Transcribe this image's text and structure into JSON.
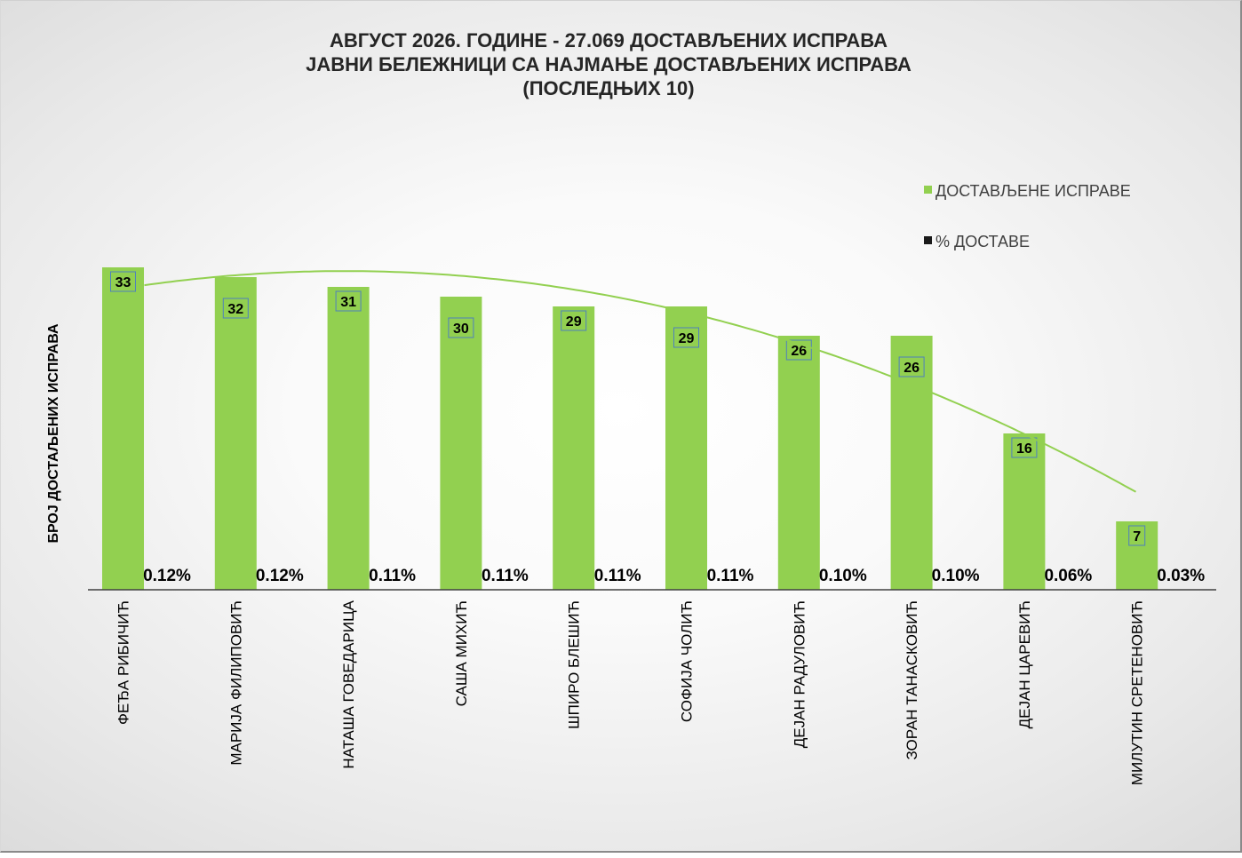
{
  "chart_data": {
    "type": "bar",
    "title_lines": [
      "АВГУСТ 2026. ГОДИНЕ - 27.069 ДОСТАВЉЕНИХ ИСПРАВА",
      "ЈАВНИ БЕЛЕЖНИЦИ СА НАЈМАЊЕ ДОСТАВЉЕНИХ ИСПРАВА",
      "(ПОСЛЕДЊИХ 10)"
    ],
    "ylabel": "БРОЈ ДОСТАЉЕНИХ ИСПРАВА",
    "categories": [
      "ФЕЂА РИБИЧИЋ",
      "МАРИЈА ФИЛИПОВИЋ",
      "НАТАША ГОВЕДАРИЦА",
      "САША МИХИЋ",
      "ШПИРО БЛЕШИЋ",
      "СОФИЈА ЧОЛИЋ",
      "ДЕЈАН РАДУЛОВИЋ",
      "ЗОРАН ТАНАСКОВИЋ",
      "ДЕЈАН ЦАРЕВИЋ",
      "МИЛУТИН СРЕТЕНОВИЋ"
    ],
    "series": [
      {
        "name": "ДОСТАВЉЕНЕ ИСПРАВЕ",
        "color": "#92d050",
        "values": [
          33,
          32,
          31,
          30,
          29,
          29,
          26,
          26,
          16,
          7
        ],
        "labels": [
          "33",
          "32",
          "31",
          "30",
          "29",
          "29",
          "26",
          "26",
          "16",
          "7"
        ]
      },
      {
        "name": "% ДОСТАВЕ",
        "color": "#000000",
        "values": [
          0.12,
          0.12,
          0.11,
          0.11,
          0.11,
          0.11,
          0.1,
          0.1,
          0.06,
          0.03
        ],
        "labels": [
          "0.12%",
          "0.12%",
          "0.11%",
          "0.11%",
          "0.11%",
          "0.11%",
          "0.10%",
          "0.10%",
          "0.06%",
          "0.03%"
        ]
      }
    ],
    "ylim": [
      0,
      36
    ],
    "grid": false,
    "legend_position": "top-right"
  }
}
